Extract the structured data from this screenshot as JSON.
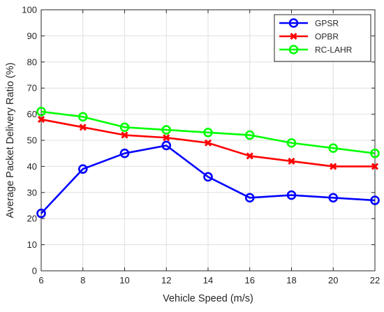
{
  "chart_data": {
    "type": "line",
    "title": "",
    "xlabel": "Vehicle Speed (m/s)",
    "ylabel": "Average Packet Delivery Ratio (%)",
    "xlim": [
      6,
      22
    ],
    "ylim": [
      0,
      100
    ],
    "x": [
      6,
      8,
      10,
      12,
      14,
      16,
      18,
      20,
      22
    ],
    "xticks": [
      6,
      8,
      10,
      12,
      14,
      16,
      18,
      20,
      22
    ],
    "yticks": [
      0,
      10,
      20,
      30,
      40,
      50,
      60,
      70,
      80,
      90,
      100
    ],
    "grid": true,
    "legend_position": "top-right",
    "series": [
      {
        "name": "GPSR",
        "color": "#0000ff",
        "marker": "circle",
        "values": [
          22,
          39,
          45,
          48,
          36,
          28,
          29,
          28,
          27
        ]
      },
      {
        "name": "OPBR",
        "color": "#ff0000",
        "marker": "x",
        "values": [
          58,
          55,
          52,
          51,
          49,
          44,
          42,
          40,
          40
        ]
      },
      {
        "name": "RC-LAHR",
        "color": "#00ff00",
        "marker": "circle",
        "values": [
          61,
          59,
          55,
          54,
          53,
          52,
          49,
          47,
          45
        ]
      }
    ]
  }
}
